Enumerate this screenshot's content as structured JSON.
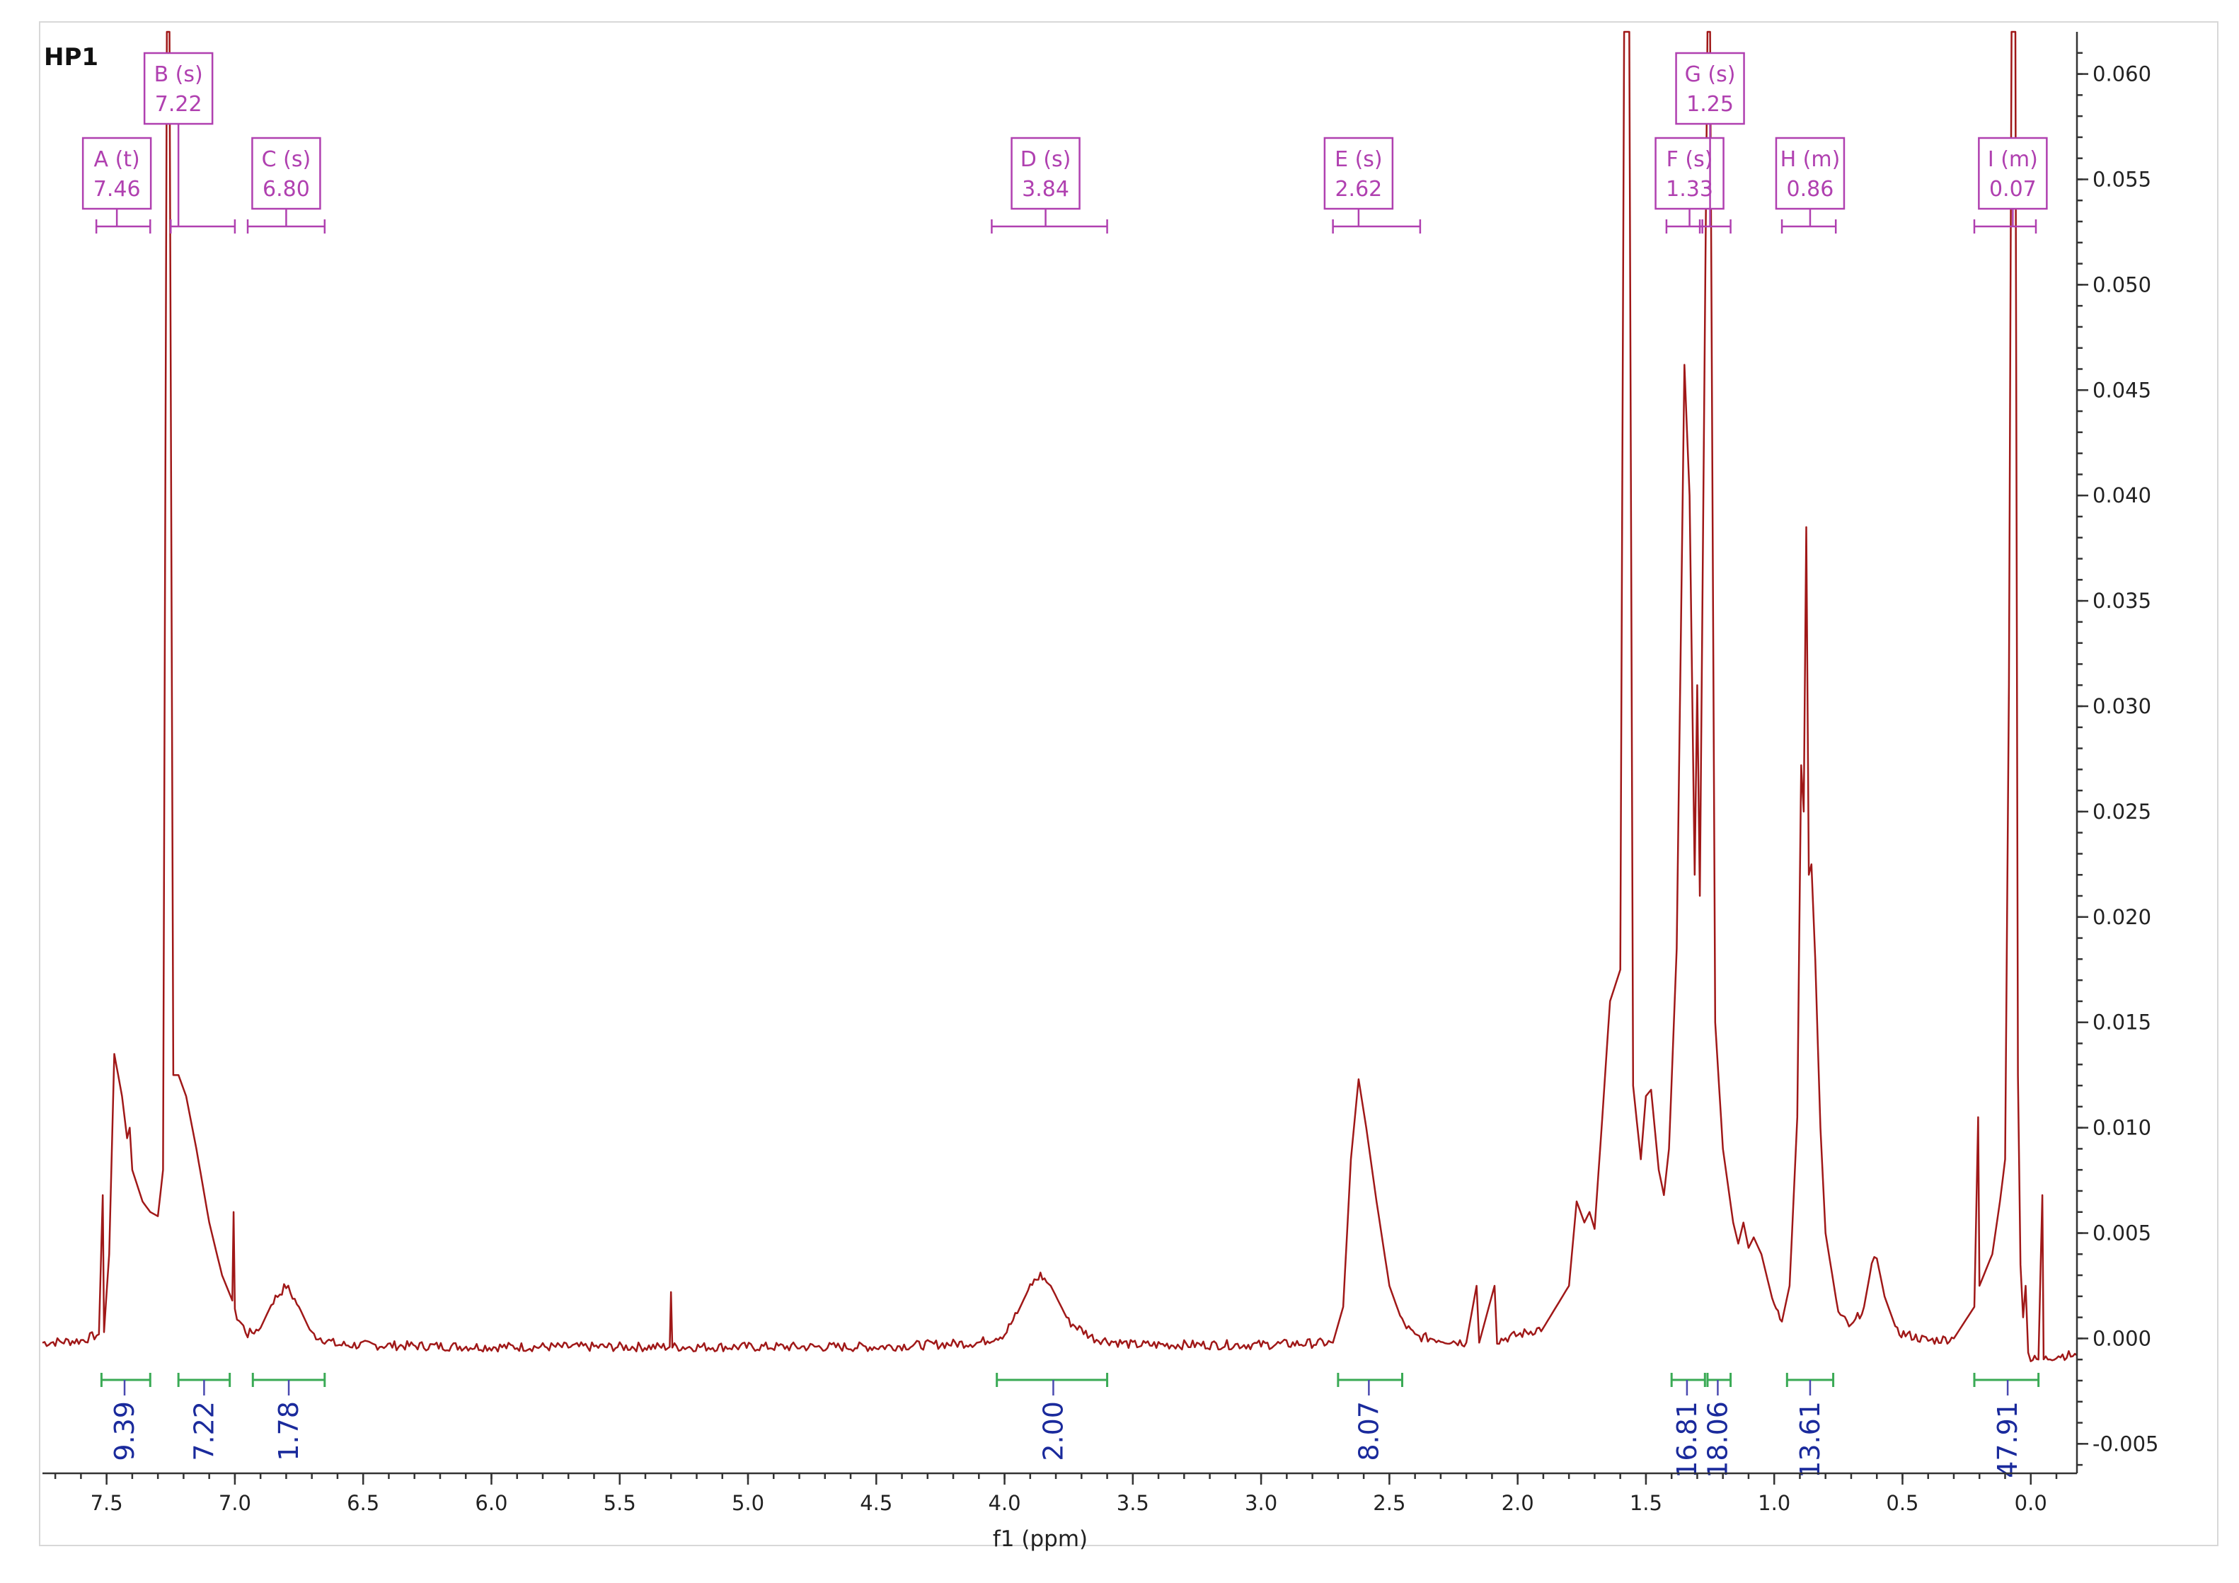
{
  "chart_data": {
    "type": "line",
    "title": "HP1",
    "xlabel": "f1 (ppm)",
    "ylabel": "",
    "xlim": [
      7.75,
      -0.18
    ],
    "ylim": [
      -0.0065,
      0.062
    ],
    "x_reversed": true,
    "x_ticks": [
      "7.5",
      "7.0",
      "6.5",
      "6.0",
      "5.5",
      "5.0",
      "4.5",
      "4.0",
      "3.5",
      "3.0",
      "2.5",
      "2.0",
      "1.5",
      "1.0",
      "0.5",
      "0.0"
    ],
    "x_tick_values": [
      7.5,
      7.0,
      6.5,
      6.0,
      5.5,
      5.0,
      4.5,
      4.0,
      3.5,
      3.0,
      2.5,
      2.0,
      1.5,
      1.0,
      0.5,
      0.0
    ],
    "y_ticks": [
      "0.060",
      "0.055",
      "0.050",
      "0.045",
      "0.040",
      "0.035",
      "0.030",
      "0.025",
      "0.020",
      "0.015",
      "0.010",
      "0.005",
      "0.000",
      "-0.005"
    ],
    "y_tick_values": [
      0.06,
      0.055,
      0.05,
      0.045,
      0.04,
      0.035,
      0.03,
      0.025,
      0.02,
      0.015,
      0.01,
      0.005,
      0.0,
      -0.005
    ],
    "baseline": -0.0004,
    "spectrum_points": [
      [
        7.75,
        -0.0002
      ],
      [
        7.6,
        -0.0001
      ],
      [
        7.53,
        0.0002
      ],
      [
        7.515,
        0.0068
      ],
      [
        7.51,
        0.0003
      ],
      [
        7.49,
        0.004
      ],
      [
        7.47,
        0.0135
      ],
      [
        7.44,
        0.0115
      ],
      [
        7.42,
        0.0095
      ],
      [
        7.41,
        0.01
      ],
      [
        7.4,
        0.008
      ],
      [
        7.36,
        0.0065
      ],
      [
        7.33,
        0.006
      ],
      [
        7.3,
        0.0058
      ],
      [
        7.28,
        0.008
      ],
      [
        7.265,
        0.062
      ],
      [
        7.255,
        0.062
      ],
      [
        7.24,
        0.0125
      ],
      [
        7.22,
        0.0125
      ],
      [
        7.19,
        0.0115
      ],
      [
        7.15,
        0.009
      ],
      [
        7.1,
        0.0055
      ],
      [
        7.05,
        0.003
      ],
      [
        7.01,
        0.0018
      ],
      [
        7.005,
        0.006
      ],
      [
        7.0,
        0.0012
      ],
      [
        6.95,
        0.0002
      ],
      [
        6.9,
        0.0005
      ],
      [
        6.85,
        0.0018
      ],
      [
        6.8,
        0.0025
      ],
      [
        6.75,
        0.0015
      ],
      [
        6.7,
        0.0002
      ],
      [
        6.6,
        -0.0003
      ],
      [
        6.0,
        -0.0004
      ],
      [
        5.5,
        -0.0004
      ],
      [
        5.305,
        -0.0004
      ],
      [
        5.3,
        0.0022
      ],
      [
        5.295,
        -0.0004
      ],
      [
        4.5,
        -0.0004
      ],
      [
        4.1,
        -0.0002
      ],
      [
        4.0,
        0.0002
      ],
      [
        3.95,
        0.0012
      ],
      [
        3.9,
        0.0025
      ],
      [
        3.86,
        0.003
      ],
      [
        3.82,
        0.0025
      ],
      [
        3.75,
        0.0008
      ],
      [
        3.65,
        0.0
      ],
      [
        3.5,
        -0.0003
      ],
      [
        3.0,
        -0.0003
      ],
      [
        2.72,
        -0.0002
      ],
      [
        2.68,
        0.0015
      ],
      [
        2.65,
        0.0085
      ],
      [
        2.62,
        0.0123
      ],
      [
        2.59,
        0.01
      ],
      [
        2.55,
        0.0065
      ],
      [
        2.5,
        0.0025
      ],
      [
        2.45,
        0.0008
      ],
      [
        2.4,
        0.0001
      ],
      [
        2.2,
        -0.0002
      ],
      [
        2.16,
        0.0025
      ],
      [
        2.15,
        -0.0002
      ],
      [
        2.09,
        0.0025
      ],
      [
        2.08,
        -0.0001
      ],
      [
        1.9,
        0.0005
      ],
      [
        1.8,
        0.0025
      ],
      [
        1.77,
        0.0065
      ],
      [
        1.74,
        0.0055
      ],
      [
        1.72,
        0.006
      ],
      [
        1.7,
        0.0052
      ],
      [
        1.67,
        0.0105
      ],
      [
        1.64,
        0.016
      ],
      [
        1.6,
        0.0175
      ],
      [
        1.585,
        0.062
      ],
      [
        1.565,
        0.062
      ],
      [
        1.55,
        0.012
      ],
      [
        1.52,
        0.0085
      ],
      [
        1.5,
        0.0115
      ],
      [
        1.48,
        0.0118
      ],
      [
        1.45,
        0.008
      ],
      [
        1.43,
        0.0068
      ],
      [
        1.41,
        0.009
      ],
      [
        1.38,
        0.0185
      ],
      [
        1.35,
        0.0462
      ],
      [
        1.33,
        0.04
      ],
      [
        1.31,
        0.022
      ],
      [
        1.3,
        0.031
      ],
      [
        1.29,
        0.021
      ],
      [
        1.26,
        0.062
      ],
      [
        1.25,
        0.062
      ],
      [
        1.23,
        0.015
      ],
      [
        1.2,
        0.009
      ],
      [
        1.16,
        0.0055
      ],
      [
        1.14,
        0.0045
      ],
      [
        1.12,
        0.0055
      ],
      [
        1.1,
        0.0043
      ],
      [
        1.08,
        0.0048
      ],
      [
        1.05,
        0.004
      ],
      [
        1.0,
        0.0015
      ],
      [
        0.97,
        0.0008
      ],
      [
        0.94,
        0.0025
      ],
      [
        0.91,
        0.0105
      ],
      [
        0.895,
        0.0272
      ],
      [
        0.885,
        0.025
      ],
      [
        0.875,
        0.0385
      ],
      [
        0.865,
        0.022
      ],
      [
        0.855,
        0.0225
      ],
      [
        0.84,
        0.018
      ],
      [
        0.82,
        0.01
      ],
      [
        0.8,
        0.005
      ],
      [
        0.75,
        0.0012
      ],
      [
        0.7,
        0.0005
      ],
      [
        0.65,
        0.0015
      ],
      [
        0.62,
        0.0035
      ],
      [
        0.6,
        0.0038
      ],
      [
        0.57,
        0.002
      ],
      [
        0.52,
        0.0003
      ],
      [
        0.4,
        -0.0001
      ],
      [
        0.3,
        0.0
      ],
      [
        0.22,
        0.0015
      ],
      [
        0.205,
        0.0105
      ],
      [
        0.2,
        0.0025
      ],
      [
        0.15,
        0.004
      ],
      [
        0.12,
        0.0065
      ],
      [
        0.1,
        0.0085
      ],
      [
        0.085,
        0.031
      ],
      [
        0.075,
        0.062
      ],
      [
        0.06,
        0.062
      ],
      [
        0.05,
        0.0125
      ],
      [
        0.04,
        0.0035
      ],
      [
        0.03,
        0.001
      ],
      [
        0.02,
        0.0025
      ],
      [
        0.01,
        -0.0005
      ],
      [
        0.0,
        -0.001
      ],
      [
        -0.03,
        -0.001
      ],
      [
        -0.045,
        0.0068
      ],
      [
        -0.05,
        -0.001
      ],
      [
        -0.1,
        -0.0008
      ],
      [
        -0.18,
        -0.0008
      ]
    ],
    "peak_labels": [
      {
        "label": "A (t)",
        "shift": "7.46",
        "range": [
          7.54,
          7.33
        ],
        "x": 7.46,
        "row": 2
      },
      {
        "label": "B (s)",
        "shift": "7.22",
        "range": [
          7.25,
          7.0
        ],
        "x": 7.22,
        "row": 1
      },
      {
        "label": "C (s)",
        "shift": "6.80",
        "range": [
          6.95,
          6.65
        ],
        "x": 6.8,
        "row": 2
      },
      {
        "label": "D (s)",
        "shift": "3.84",
        "range": [
          4.05,
          3.6
        ],
        "x": 3.84,
        "row": 2
      },
      {
        "label": "E (s)",
        "shift": "2.62",
        "range": [
          2.72,
          2.38
        ],
        "x": 2.62,
        "row": 2
      },
      {
        "label": "F (s)",
        "shift": "1.33",
        "range": [
          1.42,
          1.28
        ],
        "x": 1.33,
        "row": 2
      },
      {
        "label": "G (s)",
        "shift": "1.25",
        "range": [
          1.29,
          1.17
        ],
        "x": 1.25,
        "row": 1
      },
      {
        "label": "H (m)",
        "shift": "0.86",
        "range": [
          0.97,
          0.76
        ],
        "x": 0.86,
        "row": 2
      },
      {
        "label": "I (m)",
        "shift": "0.07",
        "range": [
          0.22,
          -0.02
        ],
        "x": 0.07,
        "row": 2
      }
    ],
    "integrals": [
      {
        "value": "9.39",
        "range": [
          7.52,
          7.33
        ],
        "x": 7.43
      },
      {
        "value": "7.22",
        "range": [
          7.22,
          7.02
        ],
        "x": 7.12
      },
      {
        "value": "1.78",
        "range": [
          6.93,
          6.65
        ],
        "x": 6.79
      },
      {
        "value": "2.00",
        "range": [
          4.03,
          3.6
        ],
        "x": 3.81
      },
      {
        "value": "8.07",
        "range": [
          2.7,
          2.45
        ],
        "x": 2.58
      },
      {
        "value": "16.81",
        "range": [
          1.4,
          1.27
        ],
        "x": 1.34
      },
      {
        "value": "18.06",
        "range": [
          1.26,
          1.17
        ],
        "x": 1.22
      },
      {
        "value": "13.61",
        "range": [
          0.95,
          0.77
        ],
        "x": 0.86
      },
      {
        "value": "47.91",
        "range": [
          0.22,
          -0.03
        ],
        "x": 0.09
      }
    ],
    "colors": {
      "spectrum": "#a01818",
      "peak": "#b040b0",
      "integral": "#3aaa55",
      "integral_text": "#1a2a9c"
    }
  }
}
